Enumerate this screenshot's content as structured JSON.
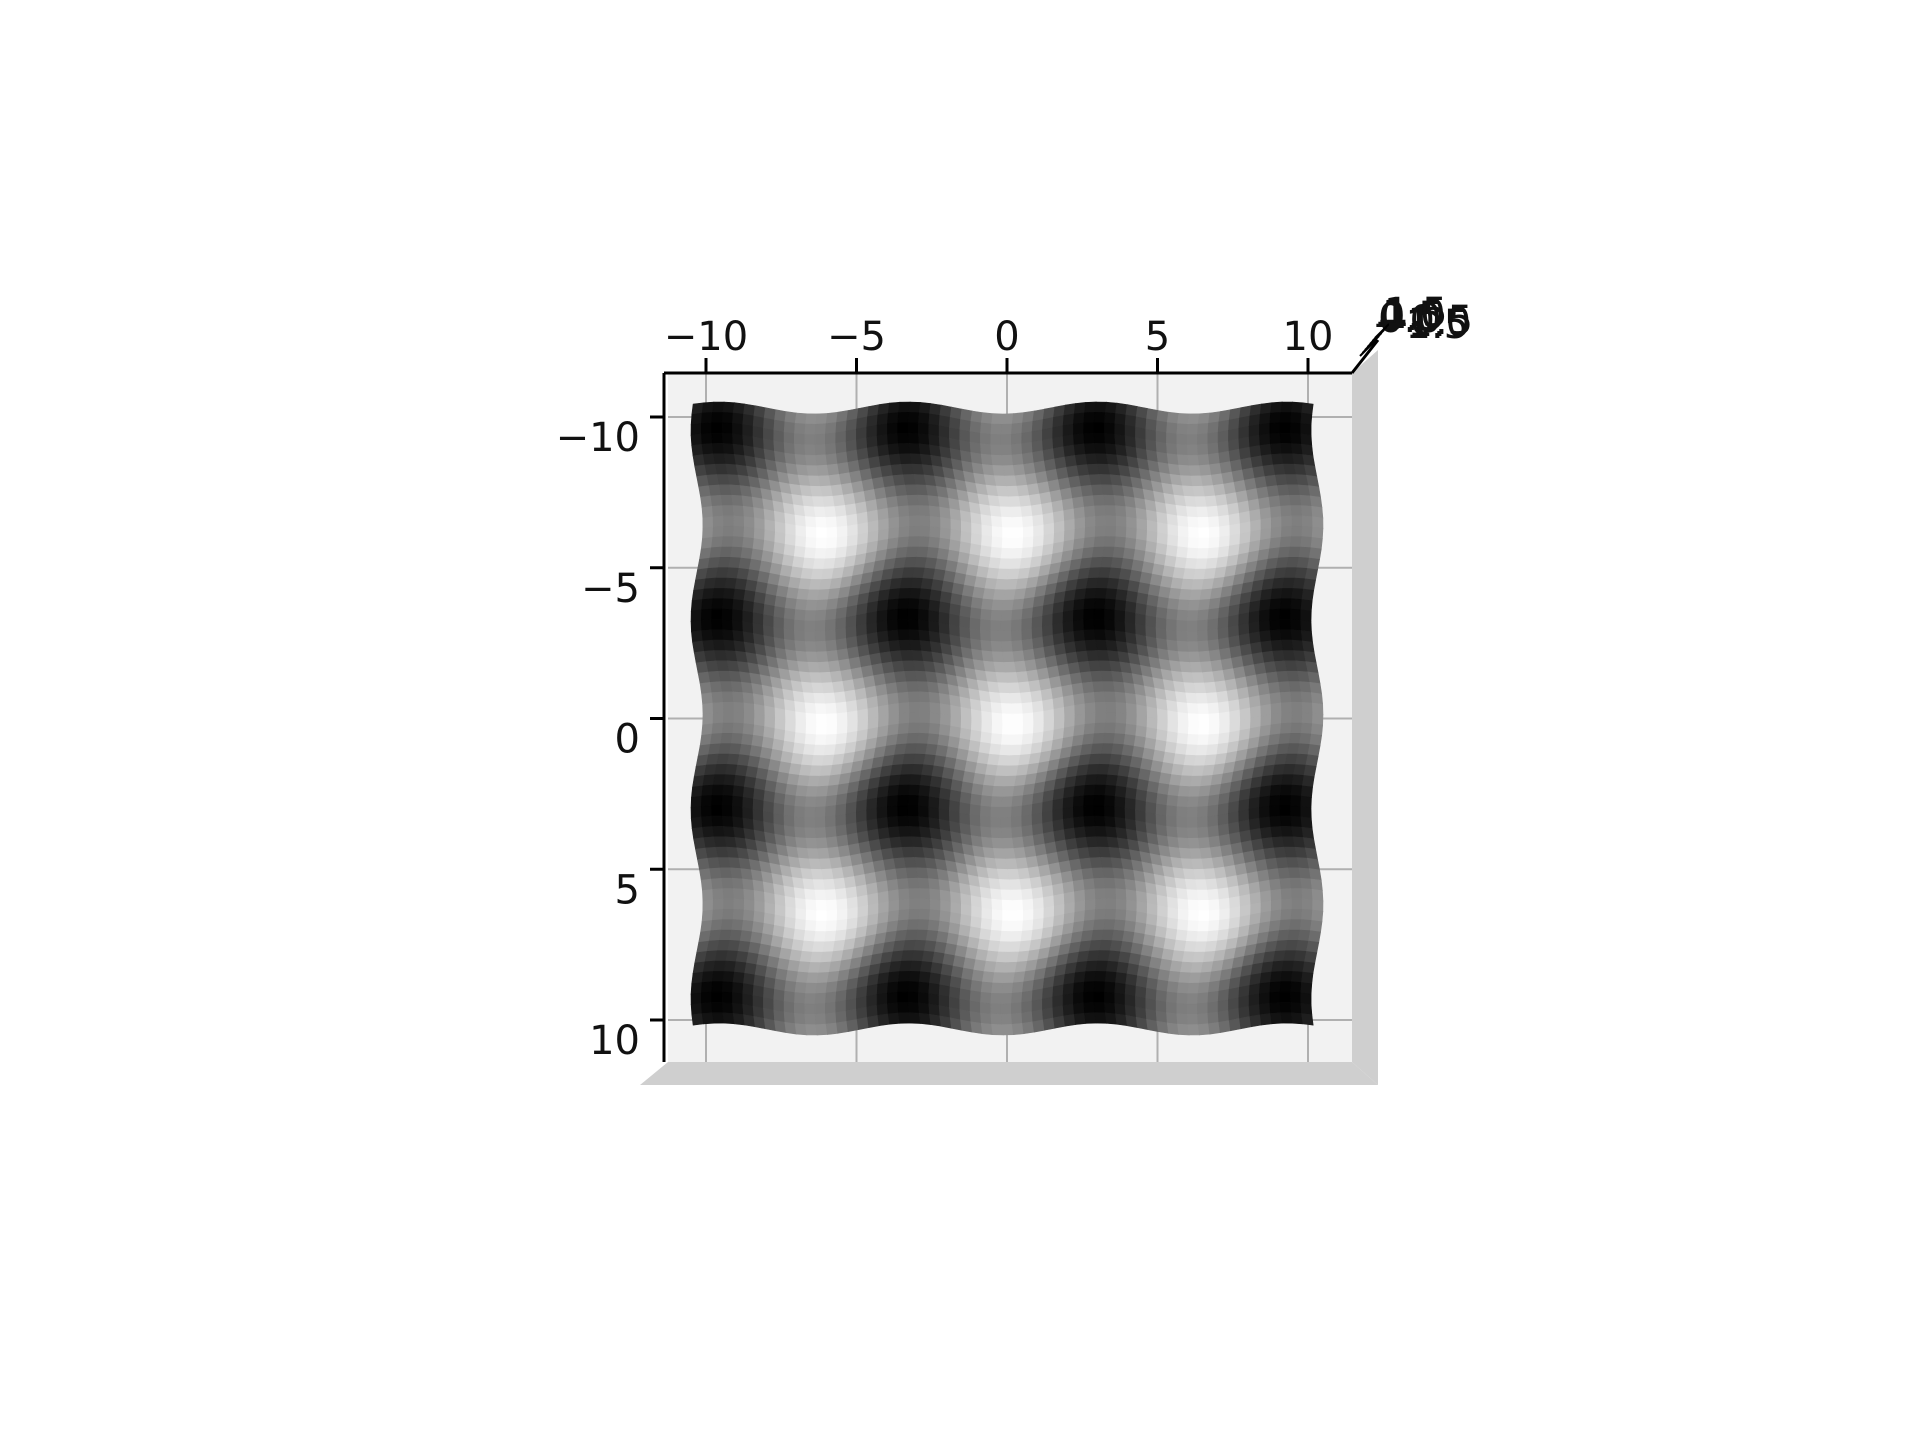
{
  "chart_data": {
    "type": "heatmap",
    "subtype": "3d-surface-top-view",
    "title": "",
    "xlabel": "",
    "ylabel": "",
    "zlabel": "",
    "colormap": "gray",
    "grid": true,
    "xlim": [
      -11.5,
      11.5
    ],
    "ylim": [
      -11.5,
      11.5
    ],
    "x_ticks": [
      -10,
      -5,
      0,
      5,
      10
    ],
    "x_tick_labels": [
      "−10",
      "−5",
      "0",
      "5",
      "10"
    ],
    "y_ticks": [
      -10,
      -5,
      0,
      5,
      10
    ],
    "y_tick_labels": [
      "−10",
      "−5",
      "0",
      "5",
      "10"
    ],
    "z_tick_labels": [
      "−1.5",
      "−1.0",
      "−0.5",
      "0.0",
      "0.5",
      "1.0",
      "1.5"
    ],
    "surface_extent": {
      "x": [
        -10.3,
        10.3
      ],
      "y": [
        -10.3,
        10.3
      ]
    },
    "surface_function": "z = cos(x) + cos(y)",
    "grid_resolution": 60,
    "z_range": [
      -2,
      2
    ]
  },
  "colors": {
    "pane_background": "#f2f2f2",
    "pane_side": "#cfcfcf",
    "axis_line": "#000000",
    "grid_line": "#b0b0b0"
  }
}
